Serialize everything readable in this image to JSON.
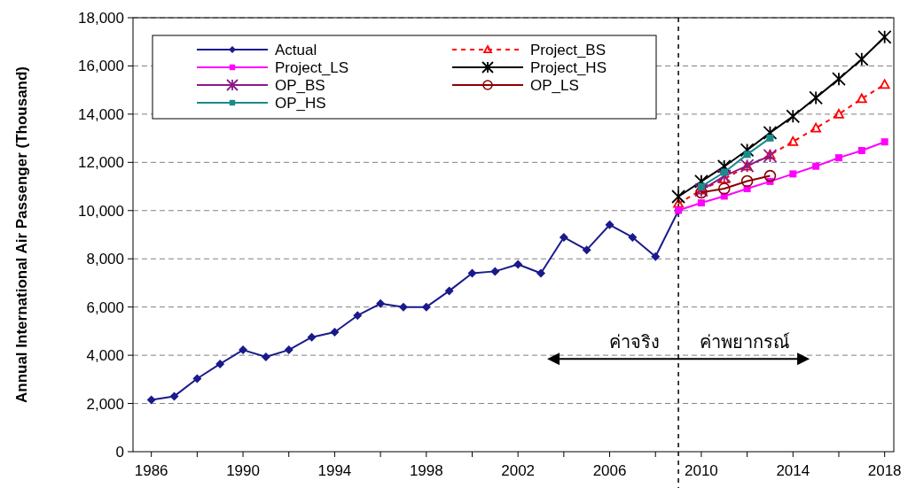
{
  "chart_data": {
    "type": "line",
    "ylabel": "Annual International Air Passenger (Thousand)",
    "xlim": [
      1985.2,
      2018.4
    ],
    "xticks": [
      1986,
      {
        "value": 1988,
        "label": null
      },
      1990,
      {
        "value": 1992,
        "label": null
      },
      1994,
      {
        "value": 1996,
        "label": null
      },
      1998,
      {
        "value": 2000,
        "label": null
      },
      2002,
      {
        "value": 2004,
        "label": null
      },
      2006,
      {
        "value": 2008,
        "label": null
      },
      2010,
      {
        "value": 2012,
        "label": null
      },
      2014,
      {
        "value": 2016,
        "label": null
      },
      2018
    ],
    "ylim": [
      0,
      18000
    ],
    "yticks": [
      {
        "value": 0,
        "label": "0"
      },
      {
        "value": 2000,
        "label": "2,000"
      },
      {
        "value": 4000,
        "label": "4,000"
      },
      {
        "value": 6000,
        "label": "6,000"
      },
      {
        "value": 8000,
        "label": "8,000"
      },
      {
        "value": 10000,
        "label": "10,000"
      },
      {
        "value": 12000,
        "label": "12,000"
      },
      {
        "value": 14000,
        "label": "14,000"
      },
      {
        "value": 16000,
        "label": "16,000"
      },
      {
        "value": 18000,
        "label": "18,000"
      }
    ],
    "grid": "y",
    "legend": "top left",
    "ref_lines": [
      {
        "axis": "x",
        "value": 2009,
        "color": "#000000",
        "line_style": "dashed"
      }
    ],
    "annotations": [
      "ค่าจริง",
      "ค่าพยากรณ์"
    ],
    "series": [
      {
        "name": "Actual",
        "color": "#1a1a8c",
        "marker": "diamond",
        "line_style": "solid",
        "x": [
          1986,
          1987,
          1988,
          1989,
          1990,
          1991,
          1992,
          1993,
          1994,
          1995,
          1996,
          1997,
          1998,
          1999,
          2000,
          2001,
          2002,
          2003,
          2004,
          2005,
          2006,
          2007,
          2008,
          2009
        ],
        "values": [
          2150,
          2300,
          3030,
          3640,
          4220,
          3930,
          4220,
          4750,
          4960,
          5650,
          6140,
          6000,
          6000,
          6670,
          7400,
          7480,
          7770,
          7400,
          8890,
          8370,
          9410,
          8890,
          8090,
          10000
        ]
      },
      {
        "name": "Project_BS",
        "color": "#ff0000",
        "marker": "triangle",
        "line_style": "dashed",
        "x": [
          2009,
          2010,
          2011,
          2012,
          2013,
          2014,
          2015,
          2016,
          2017,
          2018
        ],
        "values": [
          10300,
          10850,
          11310,
          11840,
          12310,
          12860,
          13420,
          14000,
          14640,
          15230
        ]
      },
      {
        "name": "Project_LS",
        "color": "#ff00ff",
        "marker": "square",
        "line_style": "solid",
        "x": [
          2009,
          2010,
          2011,
          2012,
          2013,
          2014,
          2015,
          2016,
          2017,
          2018
        ],
        "values": [
          10010,
          10320,
          10600,
          10910,
          11210,
          11520,
          11840,
          12190,
          12490,
          12850
        ]
      },
      {
        "name": "Project_HS",
        "color": "#000000",
        "marker": "cross",
        "line_style": "solid",
        "x": [
          2009,
          2010,
          2011,
          2012,
          2013,
          2014,
          2015,
          2016,
          2017,
          2018
        ],
        "values": [
          10580,
          11210,
          11830,
          12510,
          13230,
          13910,
          14680,
          15460,
          16280,
          17200
        ]
      },
      {
        "name": "OP_BS",
        "color": "#8b1a8b",
        "marker": "cross",
        "line_style": "solid",
        "x": [
          2010,
          2011,
          2012,
          2013
        ],
        "values": [
          10850,
          11430,
          11860,
          12270
        ]
      },
      {
        "name": "OP_LS",
        "color": "#8b0000",
        "marker": "circle",
        "line_style": "solid",
        "x": [
          2010,
          2011,
          2012,
          2013
        ],
        "values": [
          10750,
          10910,
          11220,
          11440
        ]
      },
      {
        "name": "OP_HS",
        "color": "#1a8b8b",
        "marker": "square",
        "line_style": "solid",
        "x": [
          2010,
          2011,
          2012,
          2013
        ],
        "values": [
          11000,
          11590,
          12330,
          13010
        ]
      }
    ]
  }
}
